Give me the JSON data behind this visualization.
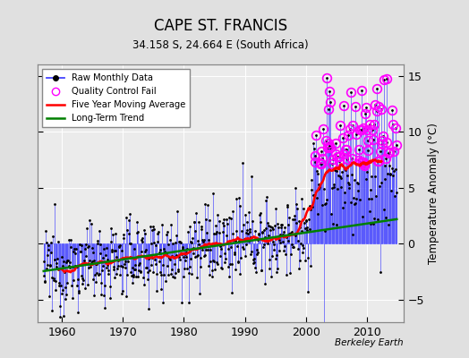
{
  "title": "CAPE ST. FRANCIS",
  "subtitle": "34.158 S, 24.664 E (South Africa)",
  "ylabel": "Temperature Anomaly (°C)",
  "watermark": "Berkeley Earth",
  "start_year": 1957,
  "end_year": 2014,
  "ylim": [
    -7,
    16
  ],
  "yticks": [
    -5,
    0,
    5,
    10,
    15
  ],
  "bg_color": "#e0e0e0",
  "plot_bg": "#ebebeb",
  "raw_line_color": "#4444ff",
  "raw_dot_color": "black",
  "qc_color": "magenta",
  "moving_avg_color": "red",
  "trend_color": "green",
  "xlim_start": 1956,
  "xlim_end": 2016,
  "xticks": [
    1960,
    1970,
    1980,
    1990,
    2000,
    2010
  ],
  "trend_slope": 0.08,
  "trend_intercept": -159.0,
  "noise_scale_early": 1.8,
  "noise_scale_late": 3.5,
  "late_boost": 5.5,
  "qc_threshold": 7.0,
  "moving_window": 60
}
